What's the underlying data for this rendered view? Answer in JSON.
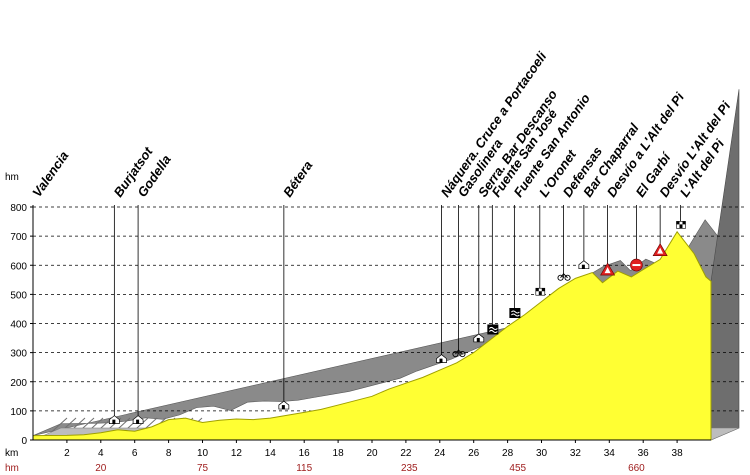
{
  "chart_data": {
    "type": "area",
    "title": "",
    "ylabel": "hm",
    "y_unit": "hm",
    "xlabel": "km",
    "x_secondary_label": "hm",
    "ylim": [
      0,
      800
    ],
    "xlim": [
      0,
      40
    ],
    "y_ticks": [
      "0",
      "100",
      "200",
      "300",
      "400",
      "500",
      "600",
      "700",
      "800"
    ],
    "x_ticks": [
      "2",
      "4",
      "6",
      "8",
      "10",
      "12",
      "14",
      "16",
      "18",
      "20",
      "22",
      "24",
      "26",
      "28",
      "30",
      "32",
      "34",
      "36",
      "38"
    ],
    "secondary_ticks": [
      {
        "km": 4,
        "label": "20"
      },
      {
        "km": 10,
        "label": "75"
      },
      {
        "km": 16,
        "label": "115"
      },
      {
        "km": 22.2,
        "label": "235"
      },
      {
        "km": 28.6,
        "label": "455"
      },
      {
        "km": 35.6,
        "label": "660"
      }
    ],
    "profile": [
      [
        0,
        15
      ],
      [
        2,
        16
      ],
      [
        3,
        18
      ],
      [
        4,
        25
      ],
      [
        5,
        35
      ],
      [
        6,
        30
      ],
      [
        7,
        45
      ],
      [
        8,
        70
      ],
      [
        9,
        75
      ],
      [
        10,
        60
      ],
      [
        11,
        68
      ],
      [
        12,
        72
      ],
      [
        13,
        70
      ],
      [
        14,
        75
      ],
      [
        15,
        85
      ],
      [
        16,
        95
      ],
      [
        17,
        105
      ],
      [
        18,
        120
      ],
      [
        19,
        135
      ],
      [
        20,
        150
      ],
      [
        21,
        175
      ],
      [
        22,
        195
      ],
      [
        23,
        215
      ],
      [
        24,
        240
      ],
      [
        25,
        265
      ],
      [
        26,
        300
      ],
      [
        27,
        345
      ],
      [
        28,
        390
      ],
      [
        29,
        430
      ],
      [
        30,
        475
      ],
      [
        31,
        520
      ],
      [
        32,
        555
      ],
      [
        33,
        575
      ],
      [
        33.6,
        540
      ],
      [
        34.5,
        580
      ],
      [
        35.3,
        560
      ],
      [
        36,
        585
      ],
      [
        37,
        620
      ],
      [
        38,
        715
      ],
      [
        39,
        640
      ],
      [
        39.7,
        560
      ],
      [
        40,
        545
      ]
    ],
    "waypoints": [
      {
        "name": "Valencia",
        "km": 0,
        "icon": "none"
      },
      {
        "name": "Burjatsot",
        "km": 4.8,
        "icon": "town"
      },
      {
        "name": "Godella",
        "km": 6.2,
        "icon": "town"
      },
      {
        "name": "Bétera",
        "km": 14.8,
        "icon": "town"
      },
      {
        "name": "Náquera. Cruce a Portacoeli",
        "km": 24.1,
        "icon": "town"
      },
      {
        "name": "Gasolinera",
        "km": 25.1,
        "icon": "bike"
      },
      {
        "name": "Serra. Bar Descanso",
        "km": 26.3,
        "icon": "town"
      },
      {
        "name": "Fuente San José",
        "km": 27.1,
        "icon": "water"
      },
      {
        "name": "Fuente San Antonio",
        "km": 28.4,
        "icon": "water"
      },
      {
        "name": "L'Oronet",
        "km": 29.9,
        "icon": "flag"
      },
      {
        "name": "Defensas",
        "km": 31.3,
        "icon": "bike"
      },
      {
        "name": "Bar Chaparral",
        "km": 32.5,
        "icon": "town"
      },
      {
        "name": "Desvío a L'Alt del Pi",
        "km": 33.9,
        "icon": "warning"
      },
      {
        "name": "El Garbí",
        "km": 35.6,
        "icon": "stop"
      },
      {
        "name": "Desvío L'Alt del Pi",
        "km": 37,
        "icon": "warning"
      },
      {
        "name": "L'Alt del Pi",
        "km": 38.2,
        "icon": "flag"
      }
    ],
    "grid": true,
    "colors": {
      "fill": "#ffff33",
      "fill_edge": "#a0a000",
      "terrain": "#8a8a8a",
      "terrain_dark": "#5a5a5a",
      "grid": "#000000",
      "secondary_axis": "#a02020"
    }
  }
}
